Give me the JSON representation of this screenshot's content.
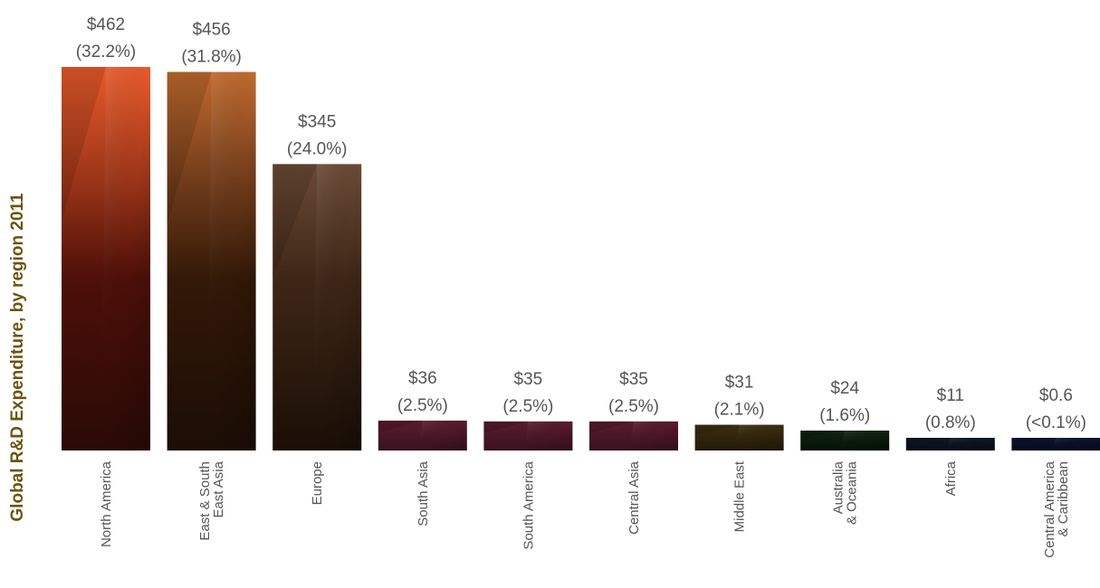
{
  "chart_data": {
    "type": "bar",
    "title": "Global R&D Expenditure, by region 2011",
    "xlabel": "",
    "ylabel": "",
    "ylim": [
      0,
      462
    ],
    "grid": false,
    "legend": "none",
    "categories": [
      [
        "North America"
      ],
      [
        "East & South",
        "East Asia"
      ],
      [
        "Europe"
      ],
      [
        "South Asia"
      ],
      [
        "South America"
      ],
      [
        "Central  Asia"
      ],
      [
        "Middle East"
      ],
      [
        "Australia",
        "& Oceania"
      ],
      [
        "Africa"
      ],
      [
        "Central America",
        "& Caribbean"
      ]
    ],
    "values": [
      462,
      456,
      345,
      36,
      35,
      35,
      31,
      24,
      11,
      0.6
    ],
    "value_labels": [
      "$462",
      "$456",
      "$345",
      "$36",
      "$35",
      "$35",
      "$31",
      "$24",
      "$11",
      "$0.6"
    ],
    "percent_labels": [
      "(32.2%)",
      "(31.8%)",
      "(24.0%)",
      "(2.5%)",
      "(2.5%)",
      "(2.5%)",
      "(2.1%)",
      "(1.6%)",
      "(0.8%)",
      "(<0.1%)"
    ],
    "colors": {
      "title": "#6b5410",
      "labels": "#555555",
      "bars": [
        "#c2452a",
        "#a65624",
        "#5e3f2c",
        "#4d1828",
        "#4d1828",
        "#4d1828",
        "#332810",
        "#0c1c0c",
        "#0b1420",
        "#0a1228"
      ]
    }
  }
}
